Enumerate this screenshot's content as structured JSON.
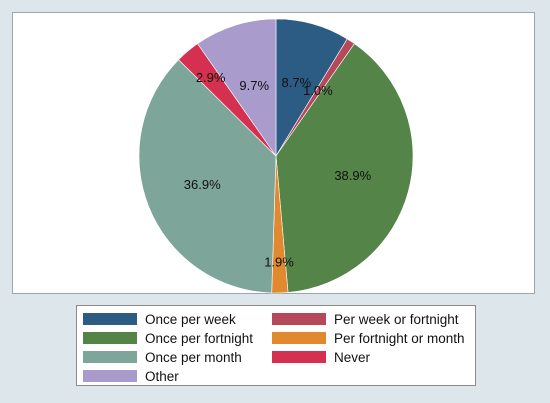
{
  "chart_data": {
    "type": "pie",
    "start_angle_deg": 0,
    "direction": "clockwise",
    "series": [
      {
        "name": "Once per week",
        "value": 8.7,
        "label": "8.7%",
        "color": "#2c5b84"
      },
      {
        "name": "Per week or fortnight",
        "value": 1.0,
        "label": "1.0%",
        "color": "#b5485a"
      },
      {
        "name": "Once per fortnight",
        "value": 38.9,
        "label": "38.9%",
        "color": "#548447"
      },
      {
        "name": "Per fortnight or month",
        "value": 1.9,
        "label": "1.9%",
        "color": "#e0892f"
      },
      {
        "name": "Once per month",
        "value": 36.9,
        "label": "36.9%",
        "color": "#7ea59a"
      },
      {
        "name": "Never",
        "value": 2.9,
        "label": "2.9%",
        "color": "#d5304f"
      },
      {
        "name": "Other",
        "value": 9.7,
        "label": "9.7%",
        "color": "#a99ccd"
      }
    ],
    "legend": {
      "position": "bottom",
      "columns": 2,
      "order": [
        "Once per week",
        "Per week or fortnight",
        "Once per fortnight",
        "Per fortnight or month",
        "Once per month",
        "Never",
        "Other"
      ]
    },
    "colors": {
      "background": "#dde6ea",
      "plot_background": "#ffffff",
      "slice_border": "#ffffff"
    }
  }
}
